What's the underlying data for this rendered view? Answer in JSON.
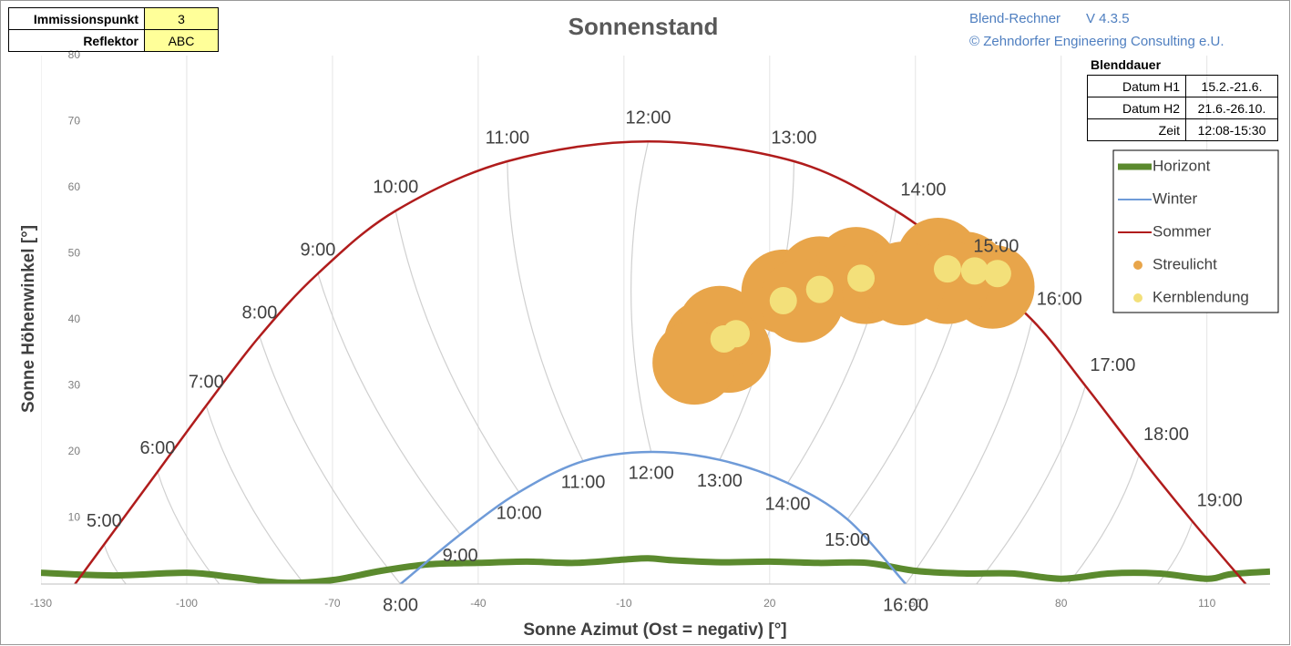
{
  "chart_data": {
    "type": "line",
    "title": "Sonnenstand",
    "x_label": "Sonne Azimut (Ost = negativ) [°]",
    "y_label": "Sonne Höhenwinkel [°]",
    "xlim": [
      -130,
      123
    ],
    "xticks": [
      -130,
      -100,
      -70,
      -40,
      -10,
      20,
      50,
      80,
      110
    ],
    "ylim": [
      0,
      80
    ],
    "yticks": [
      10,
      20,
      30,
      40,
      50,
      60,
      70,
      80
    ],
    "grid": "x",
    "legend": "upper right",
    "series": [
      {
        "name": "Horizont",
        "color": "#5b8a2e",
        "type": "line",
        "x": [
          -130,
          -115,
          -100,
          -90,
          -80,
          -70,
          -60,
          -50,
          -40,
          -30,
          -20,
          -10,
          -5,
          0,
          10,
          20,
          30,
          40,
          50,
          60,
          70,
          80,
          90,
          100,
          110,
          115,
          123
        ],
        "values": [
          1.7,
          1.3,
          1.7,
          1,
          0.2,
          0.6,
          2,
          3,
          3.2,
          3.4,
          3.2,
          3.7,
          3.9,
          3.6,
          3.3,
          3.4,
          3.2,
          3.2,
          2,
          1.6,
          1.6,
          0.8,
          1.6,
          1.6,
          0.8,
          1.5,
          1.9
        ]
      },
      {
        "name": "Winter",
        "color": "#6f9bd8",
        "type": "line",
        "x": [
          -56,
          -43.7,
          -31.6,
          -18.4,
          -4.4,
          9.7,
          23.7,
          36,
          48
        ],
        "values": [
          0,
          7.5,
          13.9,
          18.6,
          20,
          18.8,
          15.3,
          9.8,
          0
        ],
        "point_labels": [
          "8:00",
          "9:00",
          "10:00",
          "11:00",
          "12:00",
          "13:00",
          "14:00",
          "15:00",
          "16:00"
        ]
      },
      {
        "name": "Sommer",
        "color": "#b01c1c",
        "type": "line",
        "x": [
          -123,
          -117,
          -106,
          -96,
          -85,
          -73,
          -57,
          -34,
          -5,
          25,
          46,
          61,
          74,
          85,
          96,
          107,
          118
        ],
        "values": [
          0,
          6,
          17,
          27,
          37.5,
          47,
          56.5,
          64,
          67,
          64,
          56.5,
          48,
          40,
          30,
          19.5,
          9.5,
          0
        ],
        "point_labels": [
          null,
          "5:00",
          "6:00",
          "7:00",
          "8:00",
          "9:00",
          "10:00",
          "11:00",
          "12:00",
          "13:00",
          "14:00",
          "15:00",
          "16:00",
          "17:00",
          "18:00",
          "19:00",
          null
        ]
      },
      {
        "name": "Streulicht",
        "color": "#e8a54a",
        "type": "scatter",
        "x": [
          6.9,
          11.6,
          9.7,
          4.5,
          22.8,
          30.3,
          37.8,
          39.7,
          26.6,
          54.7,
          60.3,
          65.9,
          56.6,
          47.5
        ],
        "values": [
          36.7,
          35.3,
          38.8,
          33.5,
          44.3,
          46.3,
          47.7,
          45.7,
          42.9,
          49.1,
          47.0,
          45.0,
          45.7,
          45.5
        ]
      },
      {
        "name": "Kernblendung",
        "color": "#f3e07a",
        "type": "scatter",
        "x": [
          10.6,
          13.1,
          22.8,
          30.3,
          38.8,
          56.6,
          62.2,
          66.9
        ],
        "values": [
          37.1,
          37.9,
          42.9,
          44.6,
          46.3,
          47.7,
          47.4,
          47.0
        ]
      }
    ]
  },
  "header_table": {
    "rows": [
      [
        "Immissionspunkt",
        "3"
      ],
      [
        "Reflektor",
        "ABC"
      ]
    ]
  },
  "version": {
    "name": "Blend-Rechner",
    "number": "V 4.3.5",
    "copyright": "© Zehndorfer Engineering Consulting e.U."
  },
  "blenddauer": {
    "title": "Blenddauer",
    "rows": [
      [
        "Datum H1",
        "15.2.-21.6."
      ],
      [
        "Datum H2",
        "21.6.-26.10."
      ],
      [
        "Zeit",
        "12:08-15:30"
      ]
    ]
  }
}
